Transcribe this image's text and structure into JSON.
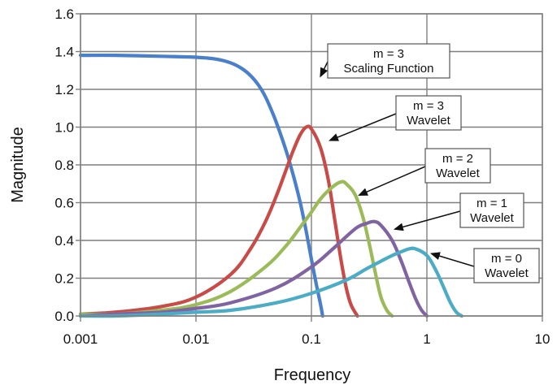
{
  "chart_data": {
    "type": "line",
    "title": "",
    "xlabel": "Frequency",
    "ylabel": "Magnitude",
    "xscale": "log",
    "xlim": [
      0.001,
      10
    ],
    "ylim": [
      0,
      1.6
    ],
    "grid": true,
    "legend": "none",
    "x_ticks": [
      {
        "value": 0.001,
        "label": "0.001"
      },
      {
        "value": 0.01,
        "label": "0.01"
      },
      {
        "value": 0.1,
        "label": "0.1"
      },
      {
        "value": 1,
        "label": "1"
      },
      {
        "value": 10,
        "label": "10"
      }
    ],
    "y_ticks": [
      {
        "value": 0.0,
        "label": "0.0"
      },
      {
        "value": 0.2,
        "label": "0.2"
      },
      {
        "value": 0.4,
        "label": "0.4"
      },
      {
        "value": 0.6,
        "label": "0.6"
      },
      {
        "value": 0.8,
        "label": "0.8"
      },
      {
        "value": 1.0,
        "label": "1.0"
      },
      {
        "value": 1.2,
        "label": "1.2"
      },
      {
        "value": 1.4,
        "label": "1.4"
      },
      {
        "value": 1.6,
        "label": "1.6"
      }
    ],
    "series": [
      {
        "id": "scaling-m3",
        "color": "#4a7fcb",
        "x": [
          0.001,
          0.002,
          0.005,
          0.01,
          0.015,
          0.02,
          0.025,
          0.03,
          0.035,
          0.04,
          0.045,
          0.05,
          0.06,
          0.07,
          0.08,
          0.09,
          0.1,
          0.11,
          0.12,
          0.125
        ],
        "y": [
          1.38,
          1.38,
          1.375,
          1.37,
          1.36,
          1.34,
          1.31,
          1.27,
          1.22,
          1.16,
          1.09,
          1.02,
          0.88,
          0.74,
          0.6,
          0.45,
          0.3,
          0.17,
          0.06,
          0.0
        ]
      },
      {
        "id": "wavelet-m3",
        "color": "#c84b47",
        "x": [
          0.001,
          0.002,
          0.005,
          0.01,
          0.02,
          0.03,
          0.04,
          0.05,
          0.06,
          0.07,
          0.08,
          0.09,
          0.1,
          0.12,
          0.14,
          0.16,
          0.18,
          0.2,
          0.22,
          0.25
        ],
        "y": [
          0.01,
          0.02,
          0.05,
          0.1,
          0.22,
          0.36,
          0.5,
          0.64,
          0.77,
          0.88,
          0.96,
          1.0,
          0.99,
          0.89,
          0.72,
          0.5,
          0.3,
          0.15,
          0.06,
          0.0
        ]
      },
      {
        "id": "wavelet-m2",
        "color": "#9bbb59",
        "x": [
          0.001,
          0.002,
          0.005,
          0.01,
          0.02,
          0.04,
          0.06,
          0.08,
          0.1,
          0.12,
          0.15,
          0.18,
          0.2,
          0.24,
          0.28,
          0.32,
          0.36,
          0.4,
          0.45,
          0.5
        ],
        "y": [
          0.01,
          0.01,
          0.03,
          0.06,
          0.13,
          0.26,
          0.37,
          0.47,
          0.55,
          0.62,
          0.68,
          0.71,
          0.7,
          0.64,
          0.52,
          0.37,
          0.22,
          0.1,
          0.03,
          0.0
        ]
      },
      {
        "id": "wavelet-m1",
        "color": "#8064a2",
        "x": [
          0.001,
          0.002,
          0.005,
          0.01,
          0.02,
          0.05,
          0.1,
          0.15,
          0.2,
          0.25,
          0.3,
          0.35,
          0.4,
          0.5,
          0.6,
          0.7,
          0.8,
          0.9,
          1.0
        ],
        "y": [
          0.0,
          0.01,
          0.02,
          0.04,
          0.07,
          0.15,
          0.26,
          0.35,
          0.42,
          0.47,
          0.49,
          0.5,
          0.48,
          0.4,
          0.29,
          0.18,
          0.09,
          0.03,
          0.0
        ]
      },
      {
        "id": "wavelet-m0",
        "color": "#4bacc6",
        "x": [
          0.001,
          0.002,
          0.005,
          0.01,
          0.02,
          0.05,
          0.1,
          0.2,
          0.3,
          0.4,
          0.5,
          0.6,
          0.7,
          0.8,
          1.0,
          1.2,
          1.4,
          1.6,
          1.8,
          2.0
        ],
        "y": [
          0.0,
          0.0,
          0.01,
          0.02,
          0.03,
          0.07,
          0.12,
          0.19,
          0.25,
          0.29,
          0.32,
          0.34,
          0.355,
          0.355,
          0.32,
          0.24,
          0.15,
          0.07,
          0.02,
          0.0
        ]
      }
    ],
    "annotations": [
      {
        "id": "scaling-m3",
        "lines": [
          "m = 3",
          "Scaling Function"
        ],
        "target": {
          "x": 0.12,
          "y": 1.27
        }
      },
      {
        "id": "wavelet-m3",
        "lines": [
          "m = 3",
          "Wavelet"
        ],
        "target": {
          "x": 0.145,
          "y": 0.93
        }
      },
      {
        "id": "wavelet-m2",
        "lines": [
          "m = 2",
          "Wavelet"
        ],
        "target": {
          "x": 0.26,
          "y": 0.64
        }
      },
      {
        "id": "wavelet-m1",
        "lines": [
          "m = 1",
          "Wavelet"
        ],
        "target": {
          "x": 0.53,
          "y": 0.46
        }
      },
      {
        "id": "wavelet-m0",
        "lines": [
          "m = 0",
          "Wavelet"
        ],
        "target": {
          "x": 1.1,
          "y": 0.33
        }
      }
    ],
    "colors": {
      "grid": "#7f7f7f",
      "frame": "#7f7f7f",
      "text": "#111111",
      "annotation_border": "#555555",
      "annotation_fill": "#ffffff"
    }
  }
}
